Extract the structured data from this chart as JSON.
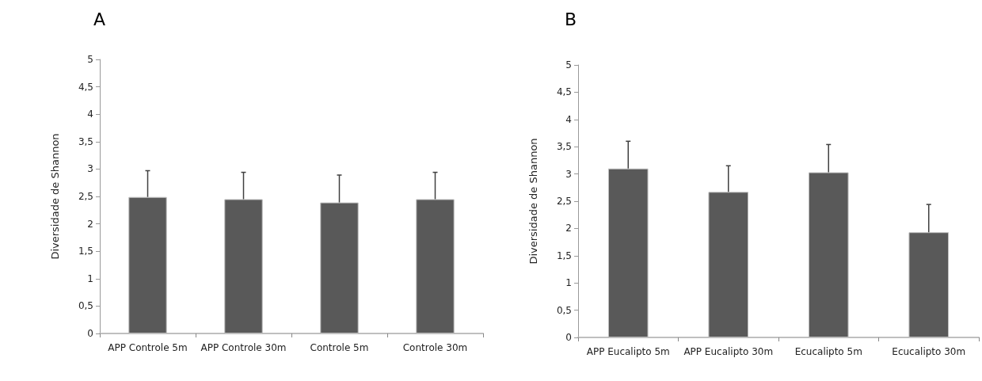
{
  "chart_data": [
    {
      "type": "bar",
      "title": "A",
      "ylabel": "Diversidade de Shannon",
      "categories": [
        "APP Controle 5m",
        "APP Controle 30m",
        "Controle 5m",
        "Controle 30m"
      ],
      "values": [
        2.49,
        2.45,
        2.39,
        2.45
      ],
      "errors": [
        [
          2.49,
          2.97
        ],
        [
          2.45,
          2.94
        ],
        [
          2.39,
          2.89
        ],
        [
          2.45,
          2.94
        ]
      ],
      "color": "#595959",
      "ylim": [
        0,
        5
      ],
      "yticks": [
        0,
        {
          "value": 0.5,
          "label": "0,5"
        },
        1,
        {
          "value": 1.5,
          "label": "1,5"
        },
        2,
        {
          "value": 2.5,
          "label": "2,5"
        },
        3,
        {
          "value": 3.5,
          "label": "3,5"
        },
        4,
        {
          "value": 4.5,
          "label": "4,5"
        },
        5
      ]
    },
    {
      "type": "bar",
      "title": "B",
      "ylabel": "Diversidade de Shannon",
      "categories": [
        "APP Eucalipto 5m",
        "APP Eucalipto 30m",
        "Ecucalipto 5m",
        "Ecucalipto 30m"
      ],
      "values": [
        3.1,
        2.67,
        3.03,
        1.93
      ],
      "errors": [
        [
          3.1,
          3.6
        ],
        [
          2.67,
          3.15
        ],
        [
          3.03,
          3.54
        ],
        [
          1.93,
          2.44
        ]
      ],
      "color": "#595959",
      "ylim": [
        0,
        5
      ],
      "yticks": [
        0,
        {
          "value": 0.5,
          "label": "0,5"
        },
        1,
        {
          "value": 1.5,
          "label": "1,5"
        },
        2,
        {
          "value": 2.5,
          "label": "2,5"
        },
        3,
        {
          "value": 3.5,
          "label": "3,5"
        },
        4,
        {
          "value": 4.5,
          "label": "4,5"
        },
        5
      ]
    }
  ]
}
